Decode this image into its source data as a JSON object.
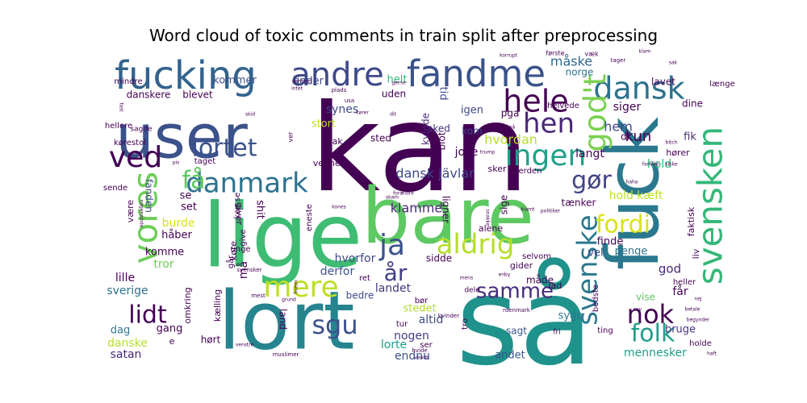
{
  "chart_data": {
    "type": "wordcloud",
    "title": "Word cloud of toxic comments in train split after preprocessing",
    "words": [
      {
        "text": "kan",
        "weight": 100,
        "color": "#440154"
      },
      {
        "text": "så",
        "weight": 96,
        "color": "#20928c"
      },
      {
        "text": "lige",
        "weight": 84,
        "color": "#3ebc74"
      },
      {
        "text": "bare",
        "weight": 80,
        "color": "#5ec962"
      },
      {
        "text": "lort",
        "weight": 78,
        "color": "#25848e"
      },
      {
        "text": "fuck",
        "weight": 70,
        "color": "#2a788e"
      },
      {
        "text": "user",
        "weight": 56,
        "color": "#3b528b"
      },
      {
        "text": "fucking",
        "weight": 40,
        "color": "#33638d"
      },
      {
        "text": "fandme",
        "weight": 34,
        "color": "#3b528b"
      },
      {
        "text": "svensken",
        "weight": 30,
        "color": "#35b779"
      },
      {
        "text": "andre",
        "weight": 28,
        "color": "#3e4989"
      },
      {
        "text": "hele",
        "weight": 26,
        "color": "#440154"
      },
      {
        "text": "dansk",
        "weight": 26,
        "color": "#2c728e"
      },
      {
        "text": "vores",
        "weight": 26,
        "color": "#6ece58"
      },
      {
        "text": "god't",
        "weight": 26,
        "color": "#7ad151"
      },
      {
        "text": "svenske",
        "weight": 24,
        "color": "#2a788e"
      },
      {
        "text": "aldrig",
        "weight": 24,
        "color": "#b5de2b"
      },
      {
        "text": "mere",
        "weight": 24,
        "color": "#bddf26"
      },
      {
        "text": "danmark",
        "weight": 22,
        "color": "#2c728e"
      },
      {
        "text": "ja",
        "weight": 22,
        "color": "#3b528b"
      },
      {
        "text": "ingen",
        "weight": 22,
        "color": "#1fa187"
      },
      {
        "text": "ved",
        "weight": 22,
        "color": "#3e4989"
      },
      {
        "text": "hen",
        "weight": 22,
        "color": "#482878"
      },
      {
        "text": "lortet",
        "weight": 20,
        "color": "#3b528b"
      },
      {
        "text": "få",
        "weight": 20,
        "color": "#5ec962"
      },
      {
        "text": "gør",
        "weight": 20,
        "color": "#414487"
      },
      {
        "text": "fordi",
        "weight": 20,
        "color": "#d8e219"
      },
      {
        "text": "nok",
        "weight": 20,
        "color": "#440154"
      },
      {
        "text": "folk",
        "weight": 20,
        "color": "#1f9e89"
      },
      {
        "text": "sgu",
        "weight": 20,
        "color": "#3b528b"
      },
      {
        "text": "lidt",
        "weight": 20,
        "color": "#440154"
      },
      {
        "text": "år",
        "weight": 18,
        "color": "#433e85"
      },
      {
        "text": "samme",
        "weight": 18,
        "color": "#472c7a"
      },
      {
        "text": "dansk jävlar",
        "weight": 10,
        "color": "#3e4989"
      },
      {
        "text": "kun",
        "weight": 10,
        "color": "#440154"
      },
      {
        "text": "måske",
        "weight": 10,
        "color": "#31688e"
      },
      {
        "text": "norge",
        "weight": 8,
        "color": "#2c728e"
      },
      {
        "text": "hem",
        "weight": 10,
        "color": "#3e4989"
      },
      {
        "text": "klamme",
        "weight": 10,
        "color": "#482878"
      },
      {
        "text": "hvordan",
        "weight": 10,
        "color": "#b5de2b"
      },
      {
        "text": "langt",
        "weight": 9,
        "color": "#440154"
      },
      {
        "text": "hold",
        "weight": 9,
        "color": "#35b779"
      },
      {
        "text": "hold kæft",
        "weight": 9,
        "color": "#bddf26"
      },
      {
        "text": "siger",
        "weight": 9,
        "color": "#440154"
      },
      {
        "text": "sverige",
        "weight": 9,
        "color": "#2c728e"
      },
      {
        "text": "lille",
        "weight": 9,
        "color": "#440154"
      },
      {
        "text": "mennesker",
        "weight": 9,
        "color": "#1f9e89"
      },
      {
        "text": "satan",
        "weight": 9,
        "color": "#482878"
      },
      {
        "text": "danske",
        "weight": 9,
        "color": "#b5de2b"
      },
      {
        "text": "dag",
        "weight": 9,
        "color": "#2a788e"
      },
      {
        "text": "gang",
        "weight": 9,
        "color": "#440154"
      },
      {
        "text": "landet",
        "weight": 9,
        "color": "#46337f"
      },
      {
        "text": "altid",
        "weight": 9,
        "color": "#3e4989"
      },
      {
        "text": "lorte",
        "weight": 9,
        "color": "#1f9e89"
      },
      {
        "text": "endnu",
        "weight": 9,
        "color": "#3b528b"
      },
      {
        "text": "nogen",
        "weight": 9,
        "color": "#433e85"
      },
      {
        "text": "stedet",
        "weight": 8,
        "color": "#b5de2b"
      },
      {
        "text": "derfor",
        "weight": 9,
        "color": "#3b528b"
      },
      {
        "text": "hvorfor",
        "weight": 9,
        "color": "#3e4989"
      },
      {
        "text": "tror",
        "weight": 9,
        "color": "#6ece58"
      },
      {
        "text": "burde",
        "weight": 9,
        "color": "#d8e219"
      },
      {
        "text": "set",
        "weight": 9,
        "color": "#440154"
      },
      {
        "text": "se",
        "weight": 8,
        "color": "#440154"
      },
      {
        "text": "synes",
        "weight": 8,
        "color": "#3e4989"
      },
      {
        "text": "stort",
        "weight": 8,
        "color": "#bddf26"
      },
      {
        "text": "joke",
        "weight": 8,
        "color": "#440154"
      },
      {
        "text": "sked",
        "weight": 7,
        "color": "#46337f"
      },
      {
        "text": "penge",
        "weight": 8,
        "color": "#2c728e"
      },
      {
        "text": "god",
        "weight": 9,
        "color": "#482878"
      },
      {
        "text": "får",
        "weight": 9,
        "color": "#440154"
      },
      {
        "text": "bruge",
        "weight": 9,
        "color": "#46337f"
      },
      {
        "text": "vise",
        "weight": 8,
        "color": "#5ec962"
      },
      {
        "text": "syge",
        "weight": 8,
        "color": "#2a788e"
      },
      {
        "text": "sagt",
        "weight": 8,
        "color": "#3b528b"
      },
      {
        "text": "andet",
        "weight": 8,
        "color": "#3b528b"
      },
      {
        "text": "fik",
        "weight": 8,
        "color": "#472c7a"
      },
      {
        "text": "finde",
        "weight": 8,
        "color": "#440154"
      },
      {
        "text": "vel",
        "weight": 8,
        "color": "#3e4989"
      },
      {
        "text": "bedre",
        "weight": 8,
        "color": "#3e4989"
      },
      {
        "text": "sidde",
        "weight": 8,
        "color": "#440154"
      },
      {
        "text": "uden",
        "weight": 8,
        "color": "#440154"
      },
      {
        "text": "helt",
        "weight": 8,
        "color": "#35b779"
      },
      {
        "text": "kommer",
        "weight": 8,
        "color": "#3b528b"
      },
      {
        "text": "finder",
        "weight": 8,
        "color": "#3e4989"
      },
      {
        "text": "tid",
        "weight": 8,
        "color": "#3e4989"
      },
      {
        "text": "igen",
        "weight": 8,
        "color": "#3e4989"
      },
      {
        "text": "kom",
        "weight": 8,
        "color": "#3e4989"
      },
      {
        "text": "sted",
        "weight": 8,
        "color": "#440154"
      },
      {
        "text": "tak",
        "weight": 7,
        "color": "#440154"
      },
      {
        "text": "kvinde",
        "weight": 8,
        "color": "#482878"
      },
      {
        "text": "blot",
        "weight": 8,
        "color": "#440154"
      },
      {
        "text": "lavet",
        "weight": 8,
        "color": "#440154"
      },
      {
        "text": "dine",
        "weight": 8,
        "color": "#440154"
      },
      {
        "text": "længe",
        "weight": 7,
        "color": "#440154"
      },
      {
        "text": "helvede",
        "weight": 7,
        "color": "#440154"
      },
      {
        "text": "pga",
        "weight": 8,
        "color": "#440154"
      },
      {
        "text": "df",
        "weight": 8,
        "color": "#440154"
      },
      {
        "text": "hører",
        "weight": 7,
        "color": "#440154"
      },
      {
        "text": "shit",
        "weight": 8,
        "color": "#440154"
      },
      {
        "text": "fanden",
        "weight": 8,
        "color": "#3e4989"
      },
      {
        "text": "sende",
        "weight": 7,
        "color": "#440154"
      },
      {
        "text": "håber",
        "weight": 8,
        "color": "#440154"
      },
      {
        "text": "komme",
        "weight": 8,
        "color": "#440154"
      },
      {
        "text": "giver",
        "weight": 7,
        "color": "#440154"
      },
      {
        "text": "være",
        "weight": 7,
        "color": "#440154"
      },
      {
        "text": "venner",
        "weight": 7,
        "color": "#440154"
      },
      {
        "text": "sker",
        "weight": 7,
        "color": "#440154"
      },
      {
        "text": "verden",
        "weight": 7,
        "color": "#440154"
      },
      {
        "text": "tænker",
        "weight": 7,
        "color": "#440154"
      },
      {
        "text": "sige",
        "weight": 7,
        "color": "#440154"
      },
      {
        "text": "mindre",
        "weight": 7,
        "color": "#440154"
      },
      {
        "text": "blevet",
        "weight": 8,
        "color": "#440154"
      },
      {
        "text": "danskere",
        "weight": 8,
        "color": "#440154"
      },
      {
        "text": "hellere",
        "weight": 7,
        "color": "#440154"
      },
      {
        "text": "sagde",
        "weight": 6,
        "color": "#440154"
      },
      {
        "text": "kørestol",
        "weight": 7,
        "color": "#440154"
      },
      {
        "text": "taget",
        "weight": 7,
        "color": "#440154"
      },
      {
        "text": "give",
        "weight": 7,
        "color": "#440154"
      },
      {
        "text": "ved",
        "weight": 6,
        "color": "#440154"
      },
      {
        "text": "eneste",
        "weight": 6,
        "color": "#440154"
      },
      {
        "text": "ligner",
        "weight": 7,
        "color": "#440154"
      },
      {
        "text": "alene",
        "weight": 7,
        "color": "#440154"
      },
      {
        "text": "selvom",
        "weight": 7,
        "color": "#440154"
      },
      {
        "text": "gider",
        "weight": 7,
        "color": "#440154"
      },
      {
        "text": "heller",
        "weight": 7,
        "color": "#440154"
      },
      {
        "text": "lad",
        "weight": 7,
        "color": "#440154"
      },
      {
        "text": "bedste",
        "weight": 7,
        "color": "#440154"
      },
      {
        "text": "ting",
        "weight": 7,
        "color": "#440154"
      },
      {
        "text": "holde",
        "weight": 7,
        "color": "#440154"
      },
      {
        "text": "fri",
        "weight": 6,
        "color": "#440154"
      },
      {
        "text": "dele",
        "weight": 6,
        "color": "#440154"
      },
      {
        "text": "ret",
        "weight": 7,
        "color": "#440154"
      },
      {
        "text": "bør",
        "weight": 7,
        "color": "#440154"
      },
      {
        "text": "tur",
        "weight": 7,
        "color": "#440154"
      },
      {
        "text": "ser",
        "weight": 7,
        "color": "#440154"
      },
      {
        "text": "tro",
        "weight": 7,
        "color": "#440154"
      },
      {
        "text": "kælling",
        "weight": 8,
        "color": "#440154"
      },
      {
        "text": "hørt",
        "weight": 7,
        "color": "#440154"
      },
      {
        "text": "omkring",
        "weight": 7,
        "color": "#440154"
      },
      {
        "text": "land",
        "weight": 8,
        "color": "#440154"
      },
      {
        "text": "må",
        "weight": 8,
        "color": "#440154"
      },
      {
        "text": "går",
        "weight": 7,
        "color": "#440154"
      },
      {
        "text": "køre",
        "weight": 7,
        "color": "#440154"
      },
      {
        "text": "unge",
        "weight": 6,
        "color": "#440154"
      },
      {
        "text": "liv",
        "weight": 7,
        "color": "#440154"
      },
      {
        "text": "faktisk",
        "weight": 7,
        "color": "#440154"
      },
      {
        "text": "første",
        "weight": 6,
        "color": "#440154"
      },
      {
        "text": "væk",
        "weight": 6,
        "color": "#440154"
      },
      {
        "text": "klam",
        "weight": 5,
        "color": "#440154"
      },
      {
        "text": "tager",
        "weight": 5,
        "color": "#440154"
      },
      {
        "text": "måde",
        "weight": 8,
        "color": "#440154"
      },
      {
        "text": "kan se",
        "weight": 6,
        "color": "#440154"
      },
      {
        "text": "e",
        "weight": 7,
        "color": "#440154"
      },
      {
        "text": "muslimer",
        "weight": 5,
        "color": "#440154"
      },
      {
        "text": "svensker",
        "weight": 5,
        "color": "#440154"
      },
      {
        "text": "hvide",
        "weight": 5,
        "color": "#440154"
      },
      {
        "text": "vandt",
        "weight": 5,
        "color": "#440154"
      },
      {
        "text": "mest",
        "weight": 5,
        "color": "#440154"
      },
      {
        "text": "grund",
        "weight": 5,
        "color": "#440154"
      },
      {
        "text": "venstre",
        "weight": 5,
        "color": "#440154"
      },
      {
        "text": "hvem",
        "weight": 5,
        "color": "#440154"
      },
      {
        "text": "kvinder",
        "weight": 5,
        "color": "#440154"
      },
      {
        "text": "mens",
        "weight": 5,
        "color": "#440154"
      },
      {
        "text": "rdenmark",
        "weight": 5,
        "color": "#440154"
      },
      {
        "text": "osv",
        "weight": 5,
        "color": "#440154"
      },
      {
        "text": "betale",
        "weight": 5,
        "color": "#440154"
      },
      {
        "text": "nej",
        "weight": 5,
        "color": "#440154"
      },
      {
        "text": "haft",
        "weight": 5,
        "color": "#440154"
      },
      {
        "text": "kones",
        "weight": 5,
        "color": "#440154"
      },
      {
        "text": "klamt",
        "weight": 5,
        "color": "#440154"
      },
      {
        "text": "politiker",
        "weight": 5,
        "color": "#440154"
      },
      {
        "text": "snakke",
        "weight": 5,
        "color": "#440154"
      },
      {
        "text": "enby",
        "weight": 5,
        "color": "#440154"
      },
      {
        "text": "skam",
        "weight": 5,
        "color": "#440154"
      },
      {
        "text": "forældre",
        "weight": 5,
        "color": "#440154"
      },
      {
        "text": "nogensinde",
        "weight": 5,
        "color": "#440154"
      },
      {
        "text": "pis",
        "weight": 5,
        "color": "#440154"
      },
      {
        "text": "haha",
        "weight": 5,
        "color": "#440154"
      },
      {
        "text": "familie",
        "weight": 5,
        "color": "#440154"
      },
      {
        "text": "sikke",
        "weight": 5,
        "color": "#440154"
      },
      {
        "text": "bitch",
        "weight": 5,
        "color": "#440154"
      },
      {
        "text": "trump",
        "weight": 5,
        "color": "#440154"
      },
      {
        "text": "begynder",
        "weight": 5,
        "color": "#440154"
      },
      {
        "text": "sak",
        "weight": 5,
        "color": "#440154"
      },
      {
        "text": "korrupt",
        "weight": 5,
        "color": "#440154"
      },
      {
        "text": "gerne",
        "weight": 5,
        "color": "#440154"
      },
      {
        "text": "intet",
        "weight": 5,
        "color": "#440154"
      },
      {
        "text": "gammel",
        "weight": 5,
        "color": "#440154"
      },
      {
        "text": "plads",
        "weight": 6,
        "color": "#440154"
      },
      {
        "text": "usa",
        "weight": 6,
        "color": "#440154"
      },
      {
        "text": "kører",
        "weight": 5,
        "color": "#440154"
      },
      {
        "text": "dit",
        "weight": 5,
        "color": "#440154"
      },
      {
        "text": "altså",
        "weight": 5,
        "color": "#440154"
      },
      {
        "text": "skid",
        "weight": 5,
        "color": "#440154"
      },
      {
        "text": "fast",
        "weight": 5,
        "color": "#440154"
      },
      {
        "text": "ver",
        "weight": 6,
        "color": "#440154"
      }
    ]
  }
}
